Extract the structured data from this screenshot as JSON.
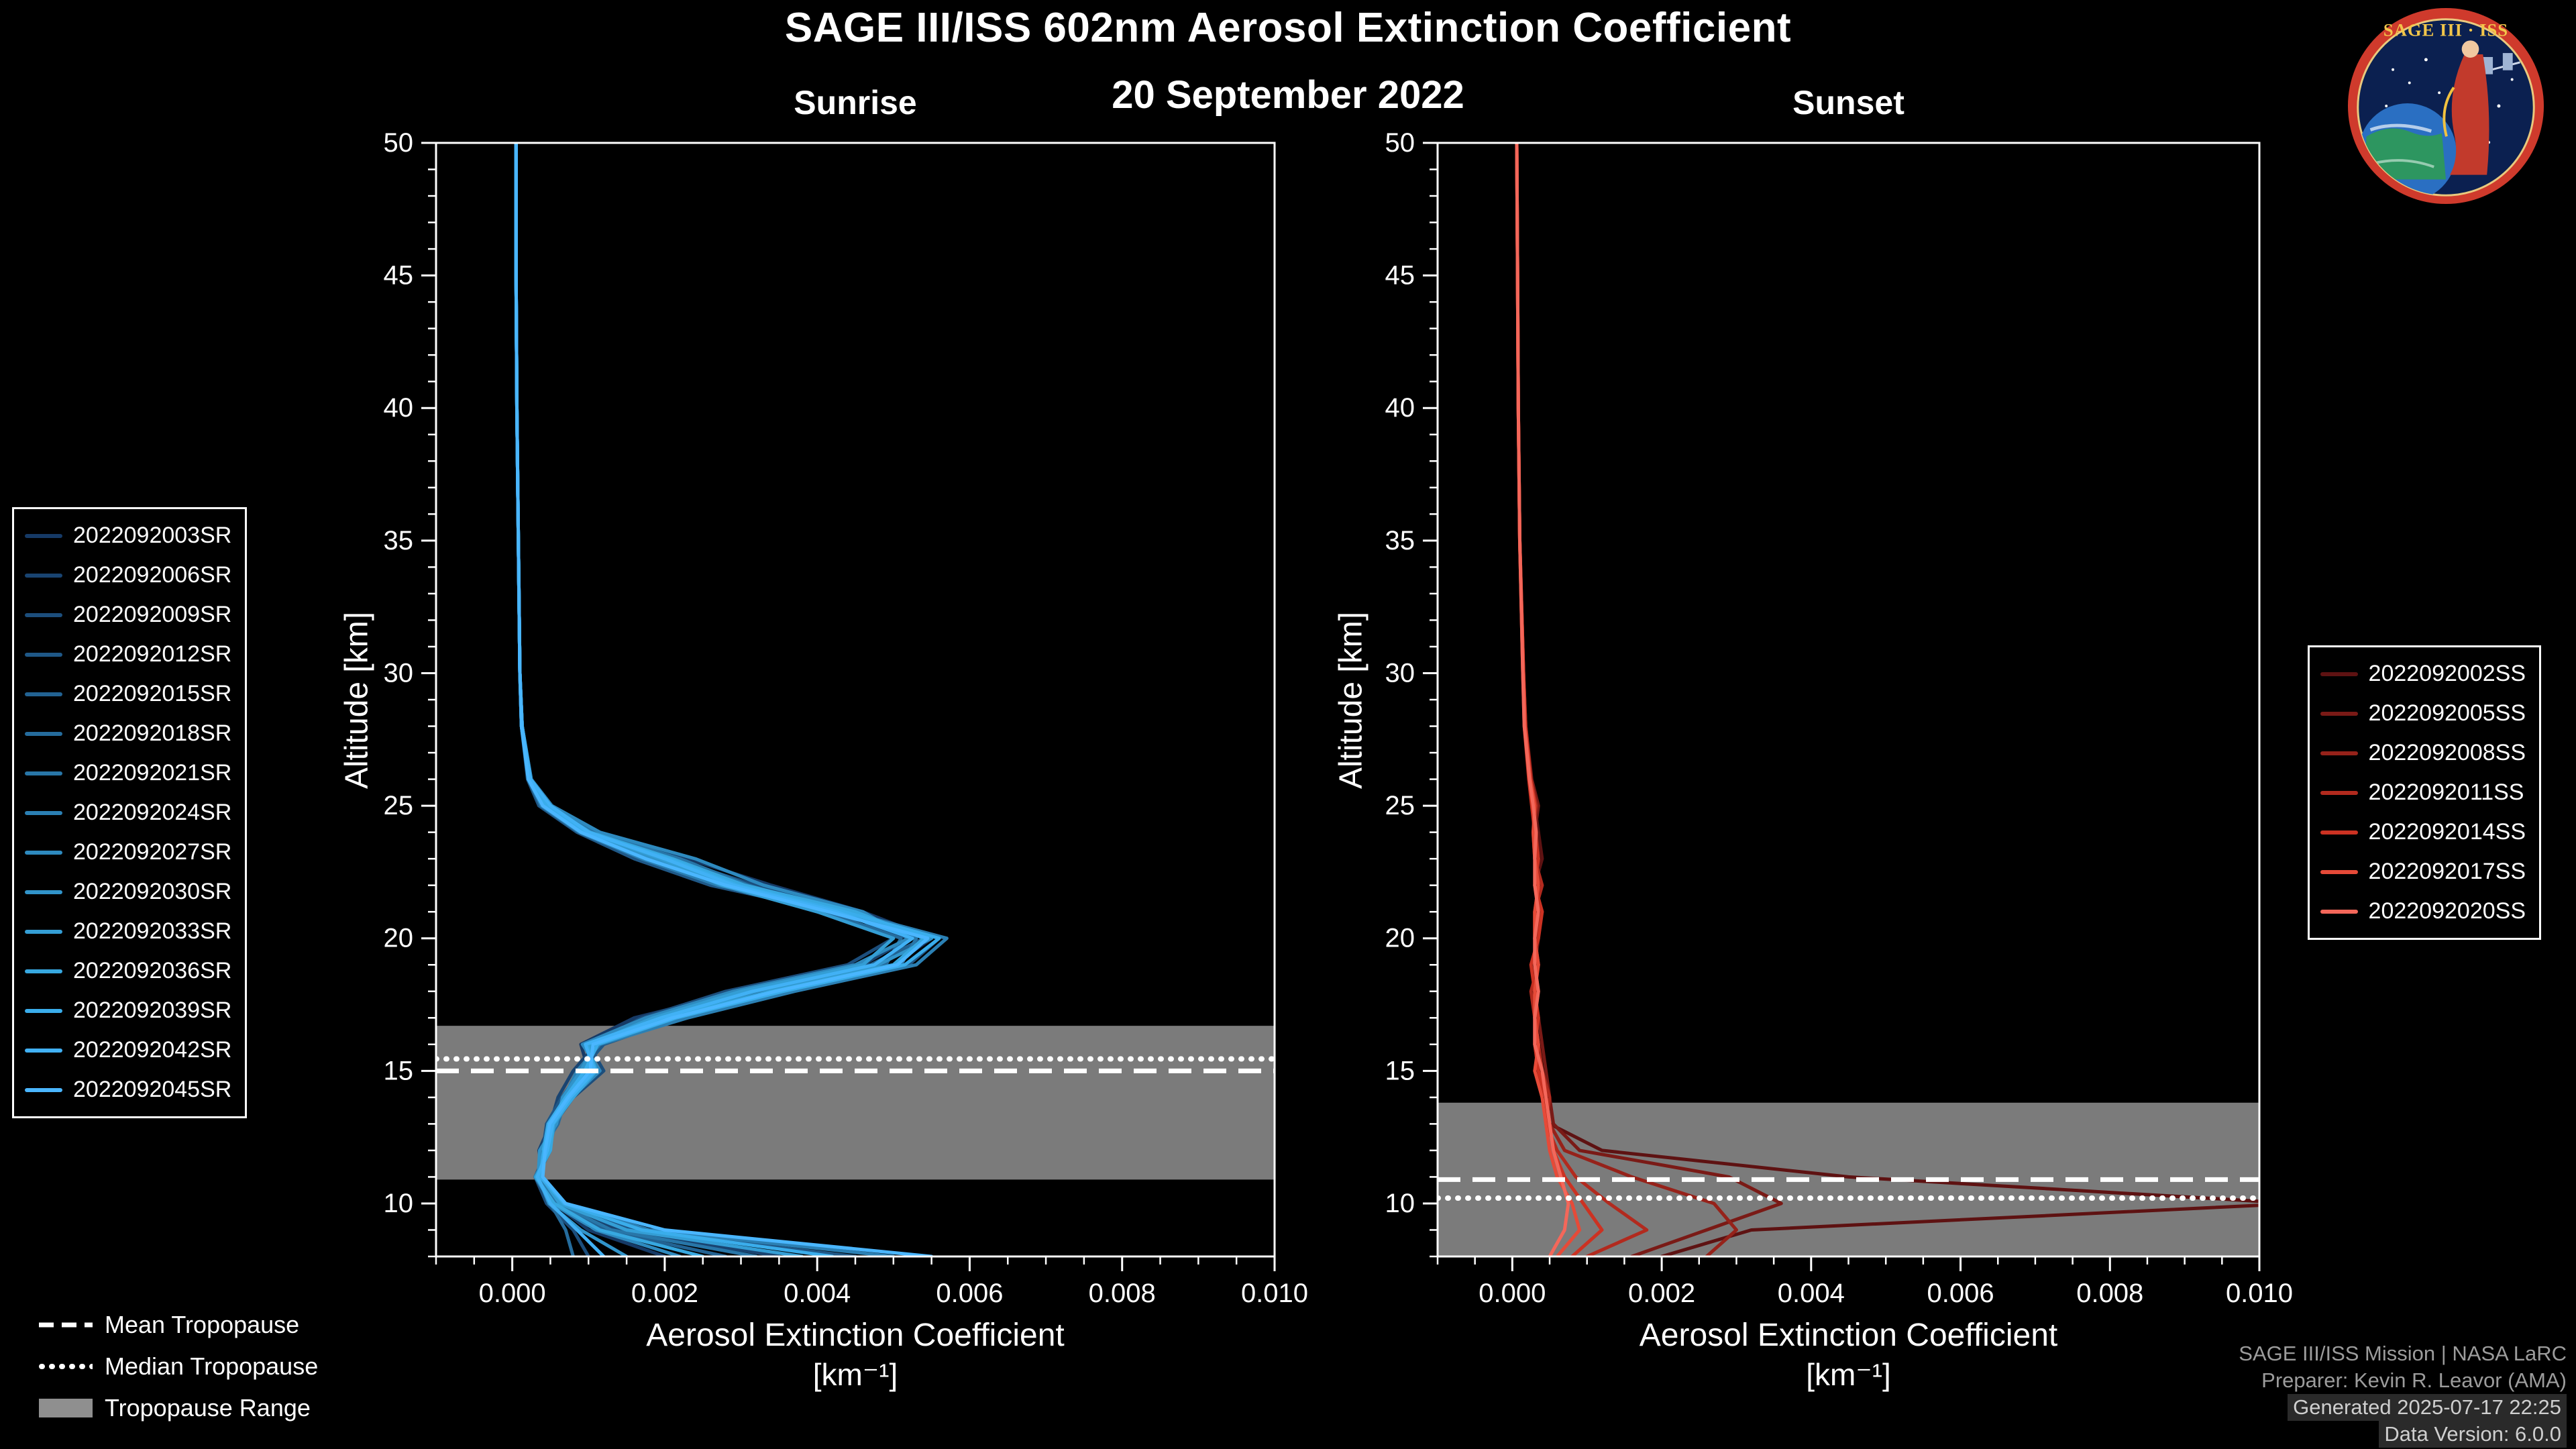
{
  "header": {
    "title": "SAGE III/ISS 602nm Aerosol Extinction Coefficient",
    "date": "20 September 2022"
  },
  "logo": {
    "top_text": "SAGE III · ISS",
    "ring_color": "#cf3a2c",
    "field_color": "#0b2050"
  },
  "tropopause_legend": {
    "mean": "Mean Tropopause",
    "median": "Median Tropopause",
    "range": "Tropopause Range"
  },
  "credits": {
    "line1": "SAGE III/ISS Mission | NASA LaRC",
    "line2": "Preparer: Kevin R. Leavor (AMA)",
    "line3": "Generated 2025-07-17 22:25",
    "line4": "Data Version: 6.0.0"
  },
  "chart_data": [
    {
      "type": "line",
      "title": "Sunrise",
      "xlabel": "Aerosol Extinction Coefficient",
      "xlabel_units": "[km⁻¹]",
      "ylabel": "Altitude [km]",
      "xlim": [
        -0.001,
        0.01
      ],
      "ylim": [
        8,
        50
      ],
      "xticks": [
        0,
        0.002,
        0.004,
        0.006,
        0.008,
        0.01
      ],
      "xtick_labels": [
        "0.000",
        "0.002",
        "0.004",
        "0.006",
        "0.008",
        "0.010"
      ],
      "yticks": [
        10,
        15,
        20,
        25,
        30,
        35,
        40,
        45,
        50
      ],
      "x_minor_step": 0.0005,
      "y_minor_step": 1,
      "value_scale": 0.001,
      "altitudes": [
        8,
        9,
        10,
        11,
        12,
        13,
        14,
        15,
        16,
        17,
        18,
        19,
        20,
        21,
        22,
        23,
        24,
        25,
        26,
        28,
        30,
        35,
        40,
        45,
        50
      ],
      "tropopause": {
        "mean_km": 15.0,
        "median_km": 15.45,
        "range_km": [
          10.9,
          16.7
        ],
        "band_color": "#9a9a9a",
        "line_color": "#ffffff"
      },
      "series": [
        {
          "name": "2022092003SR",
          "color": "#163a66",
          "values": [
            2.0,
            1.0,
            0.55,
            0.3,
            0.5,
            0.45,
            0.7,
            1.0,
            0.9,
            1.6,
            3.0,
            5.0,
            5.5,
            4.6,
            3.4,
            2.3,
            1.1,
            0.5,
            0.25,
            0.13,
            0.1,
            0.08,
            0.06,
            0.05,
            0.05
          ]
        },
        {
          "name": "2022092006SR",
          "color": "#194471",
          "values": [
            3.5,
            1.4,
            0.7,
            0.4,
            0.35,
            0.5,
            0.6,
            0.8,
            1.1,
            2.0,
            3.4,
            4.6,
            5.2,
            4.0,
            2.8,
            1.8,
            0.9,
            0.4,
            0.22,
            0.12,
            0.1,
            0.08,
            0.06,
            0.05,
            0.05
          ]
        },
        {
          "name": "2022092009SR",
          "color": "#1c4e7c",
          "values": [
            1.0,
            0.8,
            0.45,
            0.3,
            0.45,
            0.55,
            0.8,
            1.2,
            1.0,
            1.7,
            2.8,
            4.4,
            5.0,
            4.4,
            3.2,
            2.1,
            1.05,
            0.5,
            0.24,
            0.13,
            0.1,
            0.08,
            0.06,
            0.05,
            0.05
          ]
        },
        {
          "name": "2022092012SR",
          "color": "#1f5887",
          "values": [
            4.5,
            1.6,
            0.6,
            0.35,
            0.4,
            0.45,
            0.65,
            0.9,
            1.2,
            2.2,
            3.6,
            5.2,
            5.6,
            4.2,
            2.6,
            1.6,
            0.85,
            0.35,
            0.2,
            0.12,
            0.1,
            0.08,
            0.06,
            0.05,
            0.05
          ]
        },
        {
          "name": "2022092015SR",
          "color": "#226292",
          "values": [
            2.8,
            1.2,
            0.55,
            0.32,
            0.5,
            0.5,
            0.75,
            1.1,
            0.95,
            1.8,
            3.1,
            4.7,
            5.4,
            4.5,
            3.0,
            2.0,
            1.0,
            0.45,
            0.23,
            0.13,
            0.1,
            0.08,
            0.06,
            0.05,
            0.05
          ]
        },
        {
          "name": "2022092018SR",
          "color": "#256c9d",
          "values": [
            0.8,
            0.7,
            0.5,
            0.4,
            0.38,
            0.6,
            0.7,
            0.95,
            1.05,
            1.9,
            3.3,
            4.9,
            5.1,
            4.1,
            2.9,
            1.9,
            0.95,
            0.4,
            0.22,
            0.12,
            0.1,
            0.08,
            0.06,
            0.05,
            0.05
          ]
        },
        {
          "name": "2022092021SR",
          "color": "#2876a8",
          "values": [
            3.2,
            1.3,
            0.6,
            0.33,
            0.42,
            0.48,
            0.72,
            1.05,
            1.0,
            2.1,
            3.5,
            5.1,
            5.3,
            4.3,
            3.1,
            2.2,
            1.08,
            0.5,
            0.24,
            0.13,
            0.1,
            0.08,
            0.06,
            0.05,
            0.05
          ]
        },
        {
          "name": "2022092024SR",
          "color": "#2b80b4",
          "values": [
            5.0,
            1.8,
            0.65,
            0.36,
            0.45,
            0.52,
            0.68,
            0.85,
            1.15,
            2.3,
            3.7,
            5.3,
            5.7,
            4.4,
            2.7,
            1.7,
            0.88,
            0.38,
            0.21,
            0.12,
            0.1,
            0.08,
            0.06,
            0.05,
            0.05
          ]
        },
        {
          "name": "2022092027SR",
          "color": "#2e8abf",
          "values": [
            2.2,
            1.1,
            0.52,
            0.3,
            0.48,
            0.56,
            0.78,
            1.15,
            0.92,
            1.75,
            2.9,
            4.5,
            5.2,
            4.6,
            3.3,
            2.4,
            1.15,
            0.52,
            0.25,
            0.13,
            0.1,
            0.08,
            0.06,
            0.05,
            0.05
          ]
        },
        {
          "name": "2022092030SR",
          "color": "#3194ca",
          "values": [
            1.5,
            0.9,
            0.48,
            0.34,
            0.36,
            0.58,
            0.66,
            0.9,
            1.08,
            2.0,
            3.2,
            4.8,
            5.5,
            4.2,
            2.85,
            1.85,
            0.92,
            0.42,
            0.22,
            0.12,
            0.1,
            0.08,
            0.06,
            0.05,
            0.05
          ]
        },
        {
          "name": "2022092033SR",
          "color": "#349ed5",
          "values": [
            3.8,
            1.5,
            0.62,
            0.38,
            0.44,
            0.5,
            0.74,
            1.0,
            1.02,
            1.85,
            3.0,
            4.6,
            5.0,
            4.0,
            2.75,
            1.95,
            0.98,
            0.46,
            0.23,
            0.13,
            0.1,
            0.08,
            0.06,
            0.05,
            0.05
          ]
        },
        {
          "name": "2022092036SR",
          "color": "#37a8e0",
          "values": [
            2.5,
            1.15,
            0.55,
            0.31,
            0.5,
            0.54,
            0.8,
            1.1,
            0.98,
            2.05,
            3.4,
            5.0,
            5.4,
            4.5,
            3.05,
            2.1,
            1.02,
            0.48,
            0.24,
            0.13,
            0.1,
            0.08,
            0.06,
            0.05,
            0.05
          ]
        },
        {
          "name": "2022092039SR",
          "color": "#3aadeb",
          "values": [
            4.2,
            1.7,
            0.68,
            0.37,
            0.41,
            0.47,
            0.7,
            0.95,
            1.12,
            2.15,
            3.55,
            5.15,
            5.6,
            4.35,
            2.95,
            2.05,
            0.96,
            0.44,
            0.22,
            0.12,
            0.1,
            0.08,
            0.06,
            0.05,
            0.05
          ]
        },
        {
          "name": "2022092042SR",
          "color": "#41b1f5",
          "values": [
            1.2,
            0.85,
            0.5,
            0.33,
            0.46,
            0.53,
            0.76,
            1.08,
            0.96,
            1.95,
            3.15,
            4.75,
            5.25,
            4.25,
            2.9,
            2.0,
            1.0,
            0.5,
            0.24,
            0.13,
            0.1,
            0.08,
            0.06,
            0.05,
            0.05
          ]
        },
        {
          "name": "2022092045SR",
          "color": "#4ab6ff",
          "values": [
            5.5,
            2.0,
            0.7,
            0.4,
            0.43,
            0.49,
            0.73,
            1.02,
            1.06,
            2.1,
            3.45,
            5.05,
            5.45,
            4.15,
            2.8,
            1.75,
            0.9,
            0.4,
            0.21,
            0.12,
            0.1,
            0.08,
            0.06,
            0.05,
            0.05
          ]
        }
      ]
    },
    {
      "type": "line",
      "title": "Sunset",
      "xlabel": "Aerosol Extinction Coefficient",
      "xlabel_units": "[km⁻¹]",
      "ylabel": "Altitude [km]",
      "xlim": [
        -0.001,
        0.01
      ],
      "ylim": [
        8,
        50
      ],
      "xticks": [
        0,
        0.002,
        0.004,
        0.006,
        0.008,
        0.01
      ],
      "xtick_labels": [
        "0.000",
        "0.002",
        "0.004",
        "0.006",
        "0.008",
        "0.010"
      ],
      "yticks": [
        10,
        15,
        20,
        25,
        30,
        35,
        40,
        45,
        50
      ],
      "x_minor_step": 0.0005,
      "y_minor_step": 1,
      "value_scale": 0.001,
      "altitudes": [
        8,
        9,
        10,
        11,
        12,
        13,
        14,
        15,
        16,
        17,
        18,
        19,
        20,
        21,
        22,
        23,
        24,
        25,
        26,
        28,
        30,
        35,
        40,
        45,
        50
      ],
      "tropopause": {
        "mean_km": 10.9,
        "median_km": 10.2,
        "range_km": [
          8.0,
          13.8
        ],
        "band_color": "#9a9a9a",
        "line_color": "#ffffff"
      },
      "series": [
        {
          "name": "2022092002SS",
          "color": "#5e1212",
          "values": [
            2.0,
            3.2,
            10.5,
            4.5,
            1.2,
            0.5,
            0.45,
            0.4,
            0.35,
            0.3,
            0.3,
            0.35,
            0.3,
            0.35,
            0.3,
            0.4,
            0.35,
            0.3,
            0.25,
            0.18,
            0.15,
            0.1,
            0.08,
            0.07,
            0.06
          ]
        },
        {
          "name": "2022092005SS",
          "color": "#7a1a16",
          "values": [
            1.6,
            2.6,
            3.6,
            2.9,
            0.9,
            0.55,
            0.5,
            0.45,
            0.4,
            0.35,
            0.3,
            0.3,
            0.35,
            0.3,
            0.35,
            0.3,
            0.3,
            0.35,
            0.26,
            0.18,
            0.15,
            0.1,
            0.08,
            0.07,
            0.06
          ]
        },
        {
          "name": "2022092008SS",
          "color": "#96221a",
          "values": [
            2.6,
            3.0,
            2.7,
            1.6,
            0.7,
            0.5,
            0.4,
            0.35,
            0.3,
            0.3,
            0.35,
            0.3,
            0.3,
            0.4,
            0.3,
            0.35,
            0.32,
            0.28,
            0.24,
            0.17,
            0.14,
            0.1,
            0.08,
            0.07,
            0.06
          ]
        },
        {
          "name": "2022092011SS",
          "color": "#b22a1e",
          "values": [
            1.0,
            1.8,
            1.3,
            0.85,
            0.6,
            0.45,
            0.5,
            0.4,
            0.35,
            0.3,
            0.25,
            0.35,
            0.3,
            0.3,
            0.4,
            0.3,
            0.28,
            0.32,
            0.25,
            0.18,
            0.15,
            0.1,
            0.08,
            0.07,
            0.06
          ]
        },
        {
          "name": "2022092014SS",
          "color": "#cc3222",
          "values": [
            0.8,
            1.2,
            0.95,
            0.7,
            0.55,
            0.5,
            0.45,
            0.35,
            0.3,
            0.35,
            0.3,
            0.25,
            0.35,
            0.4,
            0.3,
            0.35,
            0.3,
            0.26,
            0.22,
            0.16,
            0.14,
            0.1,
            0.08,
            0.07,
            0.06
          ]
        },
        {
          "name": "2022092017SS",
          "color": "#e64a38",
          "values": [
            0.6,
            0.9,
            0.8,
            0.6,
            0.5,
            0.45,
            0.4,
            0.3,
            0.35,
            0.3,
            0.3,
            0.35,
            0.3,
            0.3,
            0.35,
            0.3,
            0.28,
            0.3,
            0.24,
            0.17,
            0.15,
            0.1,
            0.08,
            0.07,
            0.06
          ]
        },
        {
          "name": "2022092020SS",
          "color": "#f4675a",
          "values": [
            0.5,
            0.7,
            0.75,
            0.65,
            0.55,
            0.5,
            0.45,
            0.4,
            0.3,
            0.3,
            0.35,
            0.3,
            0.3,
            0.35,
            0.3,
            0.3,
            0.32,
            0.28,
            0.23,
            0.16,
            0.14,
            0.1,
            0.08,
            0.07,
            0.06
          ]
        }
      ]
    }
  ]
}
